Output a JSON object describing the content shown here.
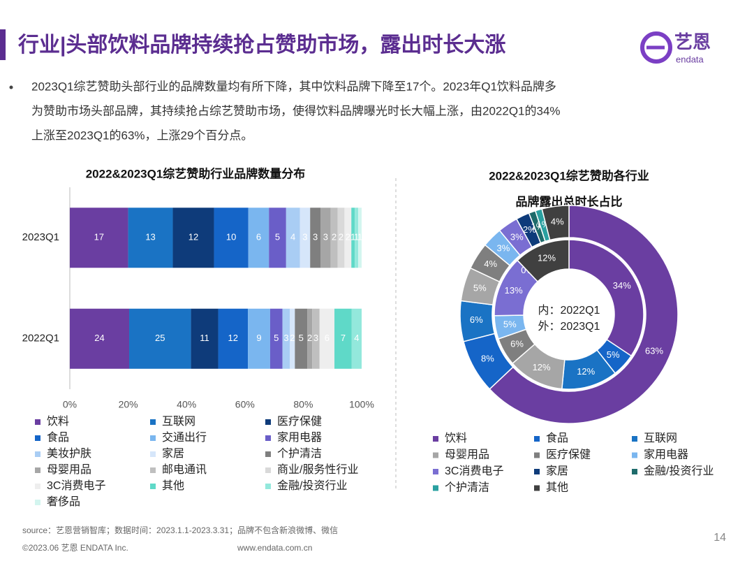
{
  "header": {
    "title": "行业|头部饮料品牌持续抢占赞助市场，露出时长大涨"
  },
  "logo": {
    "name": "艺恩",
    "sub": "endata"
  },
  "paragraph": [
    "2023Q1综艺赞助头部行业的品牌数量均有所下降，其中饮料品牌下降至17个。2023年Q1饮料品牌多",
    "为赞助市场头部品牌，其持续抢占综艺赞助市场，使得饮料品牌曝光时长大幅上涨，由2022Q1的34%",
    "上涨至2023Q1的63%，上涨29个百分点。"
  ],
  "chart_data": [
    {
      "type": "stacked-bar-100",
      "title": "2022&2023Q1综艺赞助行业品牌数量分布",
      "categories": [
        "2023Q1",
        "2022Q1"
      ],
      "xlim": [
        0,
        100
      ],
      "xticks": [
        {
          "value": 0,
          "label": "0%"
        },
        {
          "value": 20,
          "label": "20%"
        },
        {
          "value": 40,
          "label": "40%"
        },
        {
          "value": 60,
          "label": "60%"
        },
        {
          "value": 80,
          "label": "80%"
        },
        {
          "value": 100,
          "label": "100%"
        }
      ],
      "series": [
        {
          "name": "饮料",
          "color": "#6a3ea1",
          "values": [
            17,
            24
          ]
        },
        {
          "name": "互联网",
          "color": "#1a73c4",
          "values": [
            13,
            25
          ]
        },
        {
          "name": "医疗保健",
          "color": "#0e3b7a",
          "values": [
            12,
            11
          ]
        },
        {
          "name": "食品",
          "color": "#1565c8",
          "values": [
            10,
            12
          ]
        },
        {
          "name": "交通出行",
          "color": "#7ab6ef",
          "values": [
            6,
            9
          ]
        },
        {
          "name": "家用电器",
          "color": "#6a5ec8",
          "values": [
            5,
            5
          ]
        },
        {
          "name": "美妆护肤",
          "color": "#a9cdf4",
          "values": [
            4,
            3
          ]
        },
        {
          "name": "家居",
          "color": "#d6e6fa",
          "values": [
            3,
            2
          ]
        },
        {
          "name": "个护清洁",
          "color": "#7f7f7f",
          "values": [
            3,
            5
          ]
        },
        {
          "name": "母婴用品",
          "color": "#a6a6a6",
          "values": [
            3,
            2
          ]
        },
        {
          "name": "邮电通讯",
          "color": "#bfbfbf",
          "values": [
            2,
            3
          ]
        },
        {
          "name": "商业/服务性行业",
          "color": "#d9d9d9",
          "values": [
            2,
            null
          ]
        },
        {
          "name": "3C消费电子",
          "color": "#eeeeee",
          "values": [
            2,
            6
          ]
        },
        {
          "name": "其他",
          "color": "#5fd9c8",
          "values": [
            1,
            7
          ]
        },
        {
          "name": "金融/投资行业",
          "color": "#93e8dc",
          "values": [
            1,
            4
          ]
        },
        {
          "name": "奢侈品",
          "color": "#d3f5ef",
          "values": [
            1,
            null
          ]
        }
      ]
    },
    {
      "type": "donut",
      "title": [
        "2022&2023Q1综艺赞助各行业",
        "品牌露出总时长占比"
      ],
      "center_texts": [
        "内：2022Q1",
        "外：2023Q1"
      ],
      "categories": [
        "饮料",
        "食品",
        "互联网",
        "母婴用品",
        "医疗保健",
        "家用电器",
        "3C消费电子",
        "家居",
        "金融/投资行业",
        "个护清洁",
        "其他"
      ],
      "colors": [
        "#6a3ea1",
        "#1565c8",
        "#1a73c4",
        "#a6a6a6",
        "#7f7f7f",
        "#7ab6ef",
        "#7a6ed2",
        "#0e3b7a",
        "#1e6b6b",
        "#2aa0a0",
        "#404040"
      ],
      "inner": {
        "values": [
          34,
          5,
          12,
          12,
          6,
          5,
          13,
          0,
          null,
          null,
          12
        ],
        "value_labels": [
          "34%",
          "5%",
          "12%",
          "12%",
          "6%",
          "5%",
          "13%",
          "0%",
          null,
          null,
          "12%"
        ]
      },
      "outer": {
        "values": [
          63,
          8,
          6,
          5,
          4,
          3,
          3,
          2,
          1,
          1,
          4
        ],
        "value_labels": [
          "63%",
          "8%",
          "6%",
          "5%",
          "4%",
          "3%",
          "3%",
          "2%",
          "1%",
          "1%",
          "4%"
        ]
      }
    }
  ],
  "footer": {
    "source": "source：艺恩营销智库；数据时间：2023.1.1-2023.3.31；品牌不包含新浪微博、微信",
    "copyright": "©2023.06 艺恩 ENDATA Inc.",
    "website": "www.endata.com.cn",
    "page": "14"
  }
}
